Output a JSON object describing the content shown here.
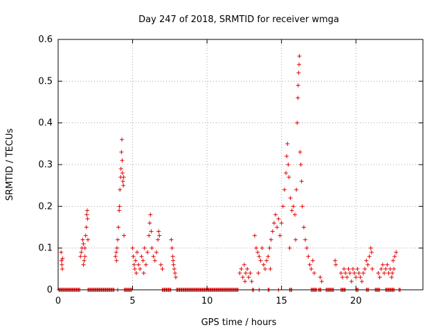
{
  "chart_data": {
    "type": "scatter",
    "title": "Day 247 of 2018, SRMTID for receiver wmga",
    "xlabel": "GPS time / hours",
    "ylabel": "SRMTID / TECUs",
    "xlim": [
      0,
      24.5
    ],
    "ylim": [
      0,
      0.6
    ],
    "x_ticks": [
      0,
      5,
      10,
      15,
      20
    ],
    "x_tick_labels": [
      "0",
      "5",
      "10",
      "15",
      "20"
    ],
    "y_ticks": [
      0,
      0.1,
      0.2,
      0.3,
      0.4,
      0.5,
      0.6
    ],
    "y_tick_labels": [
      "0",
      "0.1",
      "0.2",
      "0.3",
      "0.4",
      "0.5",
      "0.6"
    ],
    "grid": true,
    "marker": "+",
    "marker_color": "#e00000",
    "series": [
      {
        "name": "SRMTID",
        "clusters_note": "dense groups of observations; each group listed as [x, y] points",
        "points": [
          [
            0.2,
            0.09
          ],
          [
            0.22,
            0.07
          ],
          [
            0.25,
            0.06
          ],
          [
            0.28,
            0.05
          ],
          [
            0.3,
            0.075
          ],
          [
            1.5,
            0.08
          ],
          [
            1.55,
            0.09
          ],
          [
            1.6,
            0.1
          ],
          [
            1.65,
            0.12
          ],
          [
            1.7,
            0.11
          ],
          [
            1.75,
            0.07
          ],
          [
            1.8,
            0.1
          ],
          [
            1.85,
            0.13
          ],
          [
            1.9,
            0.15
          ],
          [
            1.92,
            0.18
          ],
          [
            1.95,
            0.19
          ],
          [
            1.98,
            0.17
          ],
          [
            2.0,
            0.12
          ],
          [
            1.7,
            0.06
          ],
          [
            1.8,
            0.08
          ],
          [
            3.85,
            0.08
          ],
          [
            3.9,
            0.09
          ],
          [
            3.95,
            0.1
          ],
          [
            4.0,
            0.12
          ],
          [
            4.05,
            0.15
          ],
          [
            4.1,
            0.19
          ],
          [
            4.12,
            0.2
          ],
          [
            4.15,
            0.24
          ],
          [
            4.2,
            0.27
          ],
          [
            4.22,
            0.29
          ],
          [
            4.25,
            0.33
          ],
          [
            4.28,
            0.36
          ],
          [
            4.3,
            0.31
          ],
          [
            4.32,
            0.28
          ],
          [
            4.35,
            0.26
          ],
          [
            4.38,
            0.25
          ],
          [
            4.4,
            0.27
          ],
          [
            4.42,
            0.13
          ],
          [
            3.92,
            0.07
          ],
          [
            5.0,
            0.1
          ],
          [
            5.05,
            0.08
          ],
          [
            5.1,
            0.06
          ],
          [
            5.15,
            0.05
          ],
          [
            5.2,
            0.07
          ],
          [
            5.3,
            0.09
          ],
          [
            5.4,
            0.06
          ],
          [
            5.5,
            0.05
          ],
          [
            5.6,
            0.08
          ],
          [
            5.7,
            0.07
          ],
          [
            5.8,
            0.1
          ],
          [
            5.9,
            0.06
          ],
          [
            6.0,
            0.09
          ],
          [
            6.1,
            0.13
          ],
          [
            6.15,
            0.16
          ],
          [
            6.2,
            0.18
          ],
          [
            6.25,
            0.14
          ],
          [
            6.3,
            0.1
          ],
          [
            6.4,
            0.08
          ],
          [
            6.5,
            0.07
          ],
          [
            6.6,
            0.09
          ],
          [
            6.7,
            0.12
          ],
          [
            6.75,
            0.14
          ],
          [
            6.8,
            0.13
          ],
          [
            6.9,
            0.06
          ],
          [
            7.0,
            0.05
          ],
          [
            5.25,
            0.04
          ],
          [
            5.75,
            0.04
          ],
          [
            7.6,
            0.12
          ],
          [
            7.65,
            0.1
          ],
          [
            7.7,
            0.08
          ],
          [
            7.75,
            0.06
          ],
          [
            7.8,
            0.05
          ],
          [
            7.85,
            0.04
          ],
          [
            7.9,
            0.03
          ],
          [
            7.72,
            0.07
          ],
          [
            12.2,
            0.04
          ],
          [
            12.3,
            0.05
          ],
          [
            12.4,
            0.03
          ],
          [
            12.5,
            0.06
          ],
          [
            12.6,
            0.04
          ],
          [
            12.7,
            0.05
          ],
          [
            12.8,
            0.03
          ],
          [
            12.9,
            0.04
          ],
          [
            13.0,
            0.02
          ],
          [
            12.55,
            0.02
          ],
          [
            13.2,
            0.13
          ],
          [
            13.3,
            0.1
          ],
          [
            13.4,
            0.09
          ],
          [
            13.5,
            0.08
          ],
          [
            13.6,
            0.07
          ],
          [
            13.7,
            0.1
          ],
          [
            13.8,
            0.06
          ],
          [
            13.9,
            0.05
          ],
          [
            14.0,
            0.07
          ],
          [
            14.1,
            0.08
          ],
          [
            14.2,
            0.1
          ],
          [
            14.3,
            0.12
          ],
          [
            14.4,
            0.14
          ],
          [
            14.5,
            0.16
          ],
          [
            14.6,
            0.18
          ],
          [
            14.7,
            0.15
          ],
          [
            14.8,
            0.17
          ],
          [
            14.9,
            0.13
          ],
          [
            15.0,
            0.16
          ],
          [
            15.1,
            0.2
          ],
          [
            15.2,
            0.24
          ],
          [
            15.3,
            0.28
          ],
          [
            15.35,
            0.32
          ],
          [
            15.4,
            0.35
          ],
          [
            15.45,
            0.3
          ],
          [
            15.5,
            0.27
          ],
          [
            15.6,
            0.22
          ],
          [
            15.7,
            0.19
          ],
          [
            15.8,
            0.2
          ],
          [
            15.9,
            0.18
          ],
          [
            16.0,
            0.24
          ],
          [
            16.05,
            0.4
          ],
          [
            16.1,
            0.46
          ],
          [
            16.12,
            0.49
          ],
          [
            16.15,
            0.52
          ],
          [
            16.18,
            0.54
          ],
          [
            16.2,
            0.56
          ],
          [
            16.25,
            0.33
          ],
          [
            16.3,
            0.3
          ],
          [
            16.35,
            0.26
          ],
          [
            16.4,
            0.2
          ],
          [
            16.5,
            0.15
          ],
          [
            16.6,
            0.12
          ],
          [
            16.7,
            0.1
          ],
          [
            16.8,
            0.08
          ],
          [
            16.9,
            0.06
          ],
          [
            17.0,
            0.05
          ],
          [
            17.1,
            0.07
          ],
          [
            17.2,
            0.04
          ],
          [
            13.45,
            0.04
          ],
          [
            14.25,
            0.05
          ],
          [
            15.55,
            0.1
          ],
          [
            15.95,
            0.12
          ],
          [
            17.6,
            0.03
          ],
          [
            17.7,
            0.02
          ],
          [
            18.6,
            0.07
          ],
          [
            18.65,
            0.06
          ],
          [
            19.0,
            0.04
          ],
          [
            19.1,
            0.03
          ],
          [
            19.2,
            0.05
          ],
          [
            19.3,
            0.04
          ],
          [
            19.4,
            0.03
          ],
          [
            19.5,
            0.05
          ],
          [
            19.6,
            0.04
          ],
          [
            19.7,
            0.02
          ],
          [
            19.8,
            0.05
          ],
          [
            19.9,
            0.04
          ],
          [
            20.0,
            0.03
          ],
          [
            20.1,
            0.05
          ],
          [
            20.2,
            0.04
          ],
          [
            20.3,
            0.03
          ],
          [
            20.4,
            0.02
          ],
          [
            20.5,
            0.04
          ],
          [
            20.6,
            0.05
          ],
          [
            20.7,
            0.07
          ],
          [
            20.8,
            0.06
          ],
          [
            20.9,
            0.08
          ],
          [
            21.0,
            0.1
          ],
          [
            21.05,
            0.09
          ],
          [
            21.1,
            0.05
          ],
          [
            21.5,
            0.04
          ],
          [
            21.6,
            0.03
          ],
          [
            21.7,
            0.05
          ],
          [
            21.8,
            0.06
          ],
          [
            21.9,
            0.04
          ],
          [
            22.0,
            0.05
          ],
          [
            22.1,
            0.06
          ],
          [
            22.2,
            0.04
          ],
          [
            22.3,
            0.05
          ],
          [
            22.4,
            0.03
          ],
          [
            22.5,
            0.07
          ],
          [
            22.6,
            0.08
          ],
          [
            22.7,
            0.09
          ],
          [
            22.55,
            0.05
          ],
          [
            22.45,
            0.04
          ]
        ],
        "zero_segments": [
          [
            0.05,
            1.45
          ],
          [
            2.0,
            3.8
          ],
          [
            4.0,
            4.05
          ],
          [
            4.45,
            5.0
          ],
          [
            7.0,
            7.6
          ],
          [
            7.95,
            12.1
          ],
          [
            13.05,
            13.15
          ],
          [
            13.5,
            13.55
          ],
          [
            14.1,
            14.2
          ],
          [
            14.8,
            14.85
          ],
          [
            15.55,
            15.7
          ],
          [
            17.0,
            17.4
          ],
          [
            17.5,
            17.7
          ],
          [
            18.0,
            18.5
          ],
          [
            19.0,
            19.3
          ],
          [
            20.0,
            20.2
          ],
          [
            20.7,
            20.9
          ],
          [
            21.3,
            21.6
          ],
          [
            22.0,
            22.6
          ],
          [
            22.9,
            23.0
          ]
        ]
      }
    ]
  }
}
